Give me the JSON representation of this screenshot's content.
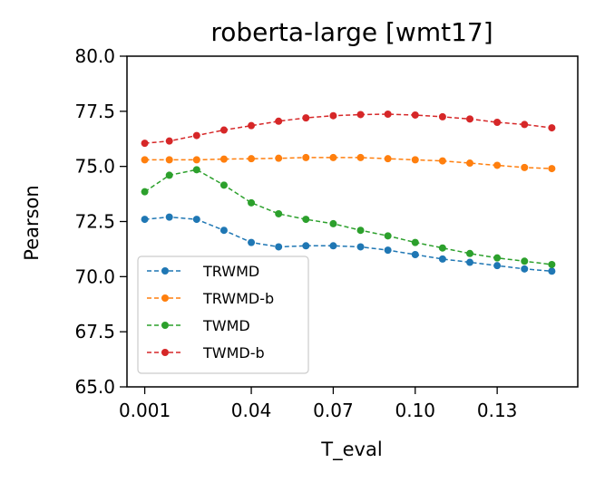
{
  "chart_data": {
    "type": "line",
    "title": "roberta-large [wmt17]",
    "xlabel": "T_eval",
    "ylabel": "Pearson",
    "xlim": [
      -0.0055,
      0.1595
    ],
    "ylim": [
      65.0,
      80.0
    ],
    "xticks": [
      0.001,
      0.04,
      0.07,
      0.1,
      0.13
    ],
    "xtick_labels": [
      "0.001",
      "0.04",
      "0.07",
      "0.10",
      "0.13"
    ],
    "yticks": [
      65.0,
      67.5,
      70.0,
      72.5,
      75.0,
      77.5,
      80.0
    ],
    "ytick_labels": [
      "65.0",
      "67.5",
      "70.0",
      "72.5",
      "75.0",
      "77.5",
      "80.0"
    ],
    "grid": false,
    "legend_position": "lower-left",
    "x": [
      0.001,
      0.01,
      0.02,
      0.03,
      0.04,
      0.05,
      0.06,
      0.07,
      0.08,
      0.09,
      0.1,
      0.11,
      0.12,
      0.13,
      0.14,
      0.15
    ],
    "series": [
      {
        "name": "TRWMD",
        "color": "#1f77b4",
        "values": [
          72.6,
          72.7,
          72.6,
          72.1,
          71.55,
          71.35,
          71.4,
          71.4,
          71.35,
          71.2,
          71.0,
          70.8,
          70.65,
          70.5,
          70.35,
          70.25
        ]
      },
      {
        "name": "TRWMD-b",
        "color": "#ff7f0e",
        "values": [
          75.3,
          75.3,
          75.3,
          75.33,
          75.35,
          75.37,
          75.4,
          75.4,
          75.4,
          75.35,
          75.3,
          75.25,
          75.15,
          75.05,
          74.95,
          74.9
        ]
      },
      {
        "name": "TWMD",
        "color": "#2ca02c",
        "values": [
          73.85,
          74.6,
          74.85,
          74.15,
          73.35,
          72.85,
          72.6,
          72.4,
          72.1,
          71.85,
          71.55,
          71.3,
          71.05,
          70.85,
          70.7,
          70.55
        ]
      },
      {
        "name": "TWMD-b",
        "color": "#d62728",
        "values": [
          76.05,
          76.15,
          76.4,
          76.65,
          76.85,
          77.05,
          77.2,
          77.3,
          77.35,
          77.37,
          77.33,
          77.25,
          77.15,
          77.0,
          76.9,
          76.75
        ]
      }
    ]
  }
}
